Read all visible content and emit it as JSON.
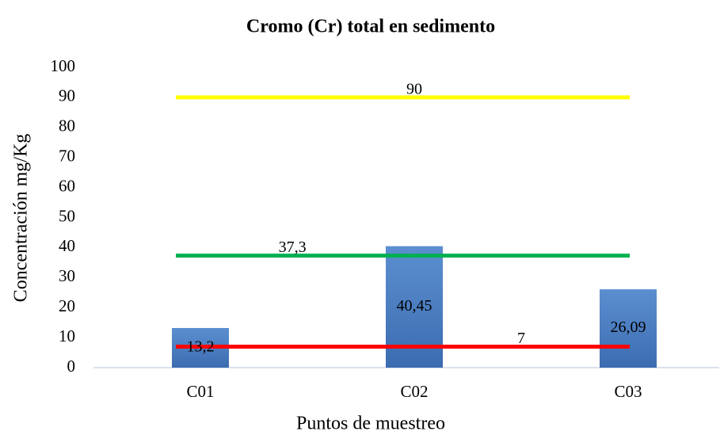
{
  "chart_data": {
    "type": "bar",
    "title": "Cromo (Cr) total en sedimento",
    "x_label": "Puntos de muestreo",
    "y_label": "Concentración mg/Kg",
    "categories": [
      "C01",
      "C02",
      "C03"
    ],
    "values": [
      13.2,
      40.45,
      26.09
    ],
    "value_labels": [
      "13,2",
      "40,45",
      "26,09"
    ],
    "color": "#4a7ebb",
    "reference_lines": [
      {
        "value": 90,
        "color": "#ffff00"
      },
      {
        "value": 37.3,
        "label": "37,3",
        "color": "#00b050"
      },
      {
        "value": 7,
        "color": "#ff0000"
      }
    ],
    "ylim": [
      0,
      100
    ],
    "yticks": [
      0,
      10,
      20,
      30,
      40,
      50,
      60,
      70,
      80,
      90,
      100
    ],
    "grid": false
  }
}
